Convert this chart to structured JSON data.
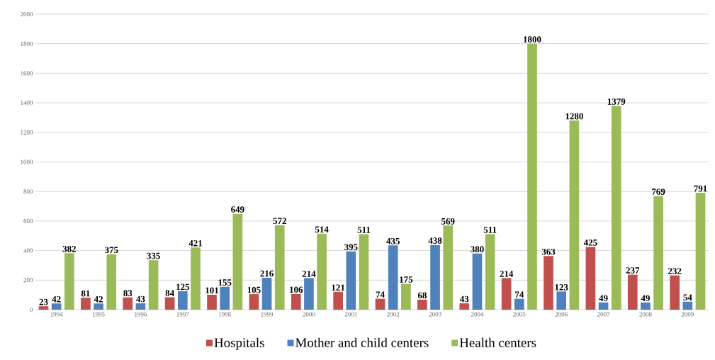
{
  "chart_data": {
    "type": "bar",
    "categories": [
      "1994",
      "1995",
      "1996",
      "1997",
      "1998",
      "1999",
      "2000",
      "2001",
      "2002",
      "2003",
      "2004",
      "2005",
      "2006",
      "2007",
      "2008",
      "2009"
    ],
    "series": [
      {
        "name": "Hospitals",
        "color": "#c0504d",
        "values": [
          23,
          81,
          83,
          84,
          101,
          105,
          106,
          121,
          74,
          68,
          43,
          214,
          363,
          425,
          237,
          232
        ]
      },
      {
        "name": "Mother and child centers",
        "color": "#4f81bd",
        "values": [
          42,
          42,
          43,
          125,
          155,
          216,
          214,
          395,
          435,
          438,
          380,
          74,
          123,
          49,
          49,
          54
        ]
      },
      {
        "name": "Health centers",
        "color": "#9bbb59",
        "values": [
          382,
          375,
          335,
          421,
          649,
          572,
          514,
          511,
          175,
          569,
          511,
          1800,
          1280,
          1379,
          769,
          791
        ]
      }
    ],
    "ylim": [
      0,
      2000
    ],
    "yticks": [
      0,
      200,
      400,
      600,
      800,
      1000,
      1200,
      1400,
      1600,
      1800,
      2000
    ],
    "grid": "y",
    "legend": "bottom",
    "data_labels": true
  }
}
